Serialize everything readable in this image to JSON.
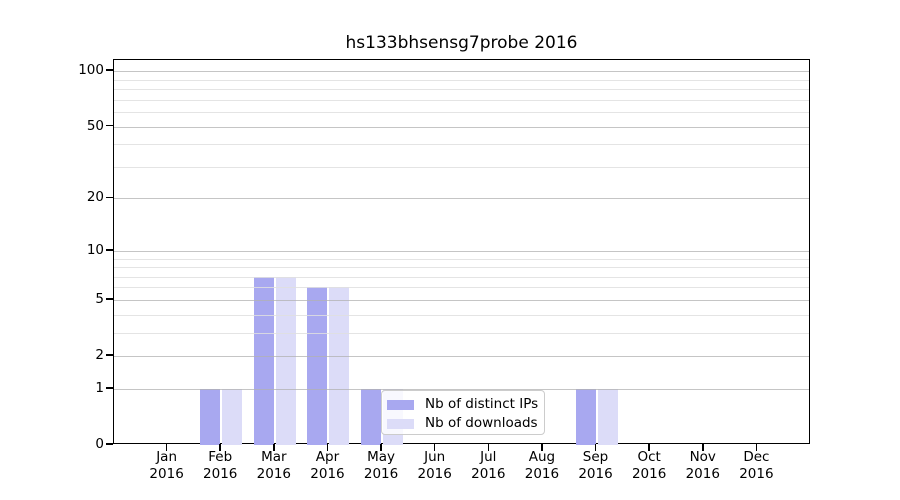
{
  "chart_data": {
    "type": "bar",
    "title": "hs133bhsensg7probe 2016",
    "categories": [
      "Jan",
      "Feb",
      "Mar",
      "Apr",
      "May",
      "Jun",
      "Jul",
      "Aug",
      "Sep",
      "Oct",
      "Nov",
      "Dec"
    ],
    "x_year_label": "2016",
    "series": [
      {
        "name": "Nb of distinct IPs",
        "color": "#a8a8f0",
        "values": [
          0,
          1,
          7,
          6,
          1,
          0,
          0,
          0,
          1,
          0,
          0,
          0
        ]
      },
      {
        "name": "Nb of downloads",
        "color": "#dcdcf8",
        "values": [
          0,
          1,
          7,
          6,
          1,
          0,
          0,
          0,
          1,
          0,
          0,
          0
        ]
      }
    ],
    "y_axis": {
      "scale": "log1p",
      "major_ticks": [
        0,
        1,
        2,
        5,
        10,
        20,
        50,
        100
      ],
      "minor_gridlines": [
        3,
        4,
        6,
        7,
        8,
        9,
        30,
        40,
        60,
        70,
        80,
        90
      ],
      "top_value": 115
    },
    "legend_position": "lower center",
    "colors": {
      "grid_major": "rgba(178,178,178,0.75)",
      "grid_minor": "rgba(223,223,223,0.85)",
      "axis": "#000000",
      "background": "#ffffff"
    }
  }
}
